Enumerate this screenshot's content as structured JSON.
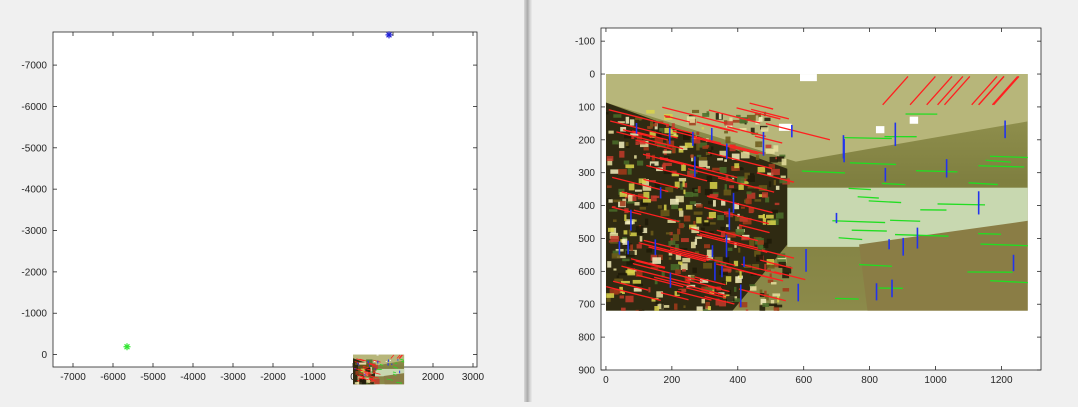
{
  "colors": {
    "axes_bg": "#ffffff",
    "axis_line": "#262626",
    "marker_blue": "#1f1fd6",
    "marker_green": "#33e633",
    "line_red": "#ff2020",
    "line_green": "#22dd22",
    "line_blue": "#2233ee"
  },
  "chart_data": [
    {
      "type": "scatter",
      "xlim": [
        -7500,
        3100
      ],
      "ylim": [
        300,
        -7800
      ],
      "y_reversed": true,
      "grid": false,
      "xticks": [
        -7000,
        -6000,
        -5000,
        -4000,
        -3000,
        -2000,
        -1000,
        0,
        1000,
        2000,
        3000
      ],
      "yticks": [
        -7000,
        -6000,
        -5000,
        -4000,
        -3000,
        -2000,
        -1000,
        0
      ],
      "series": [
        {
          "marker": "*",
          "color": "#1f1fd6",
          "points": [
            [
              900,
              -7730
            ]
          ]
        },
        {
          "marker": "*",
          "color": "#33e633",
          "points": [
            [
              -5650,
              -190
            ]
          ]
        }
      ],
      "image_extent": {
        "x": [
          0,
          1280
        ],
        "y": [
          0,
          720
        ]
      }
    },
    {
      "type": "image",
      "xlim": [
        -15,
        1320
      ],
      "ylim": [
        900,
        -140
      ],
      "y_reversed": true,
      "grid": false,
      "xticks": [
        0,
        200,
        400,
        600,
        800,
        1000,
        1200
      ],
      "yticks": [
        -100,
        0,
        100,
        200,
        300,
        400,
        500,
        600,
        700,
        800,
        900
      ],
      "image_extent": {
        "x": [
          0,
          1280
        ],
        "y": [
          0,
          720
        ]
      }
    }
  ]
}
